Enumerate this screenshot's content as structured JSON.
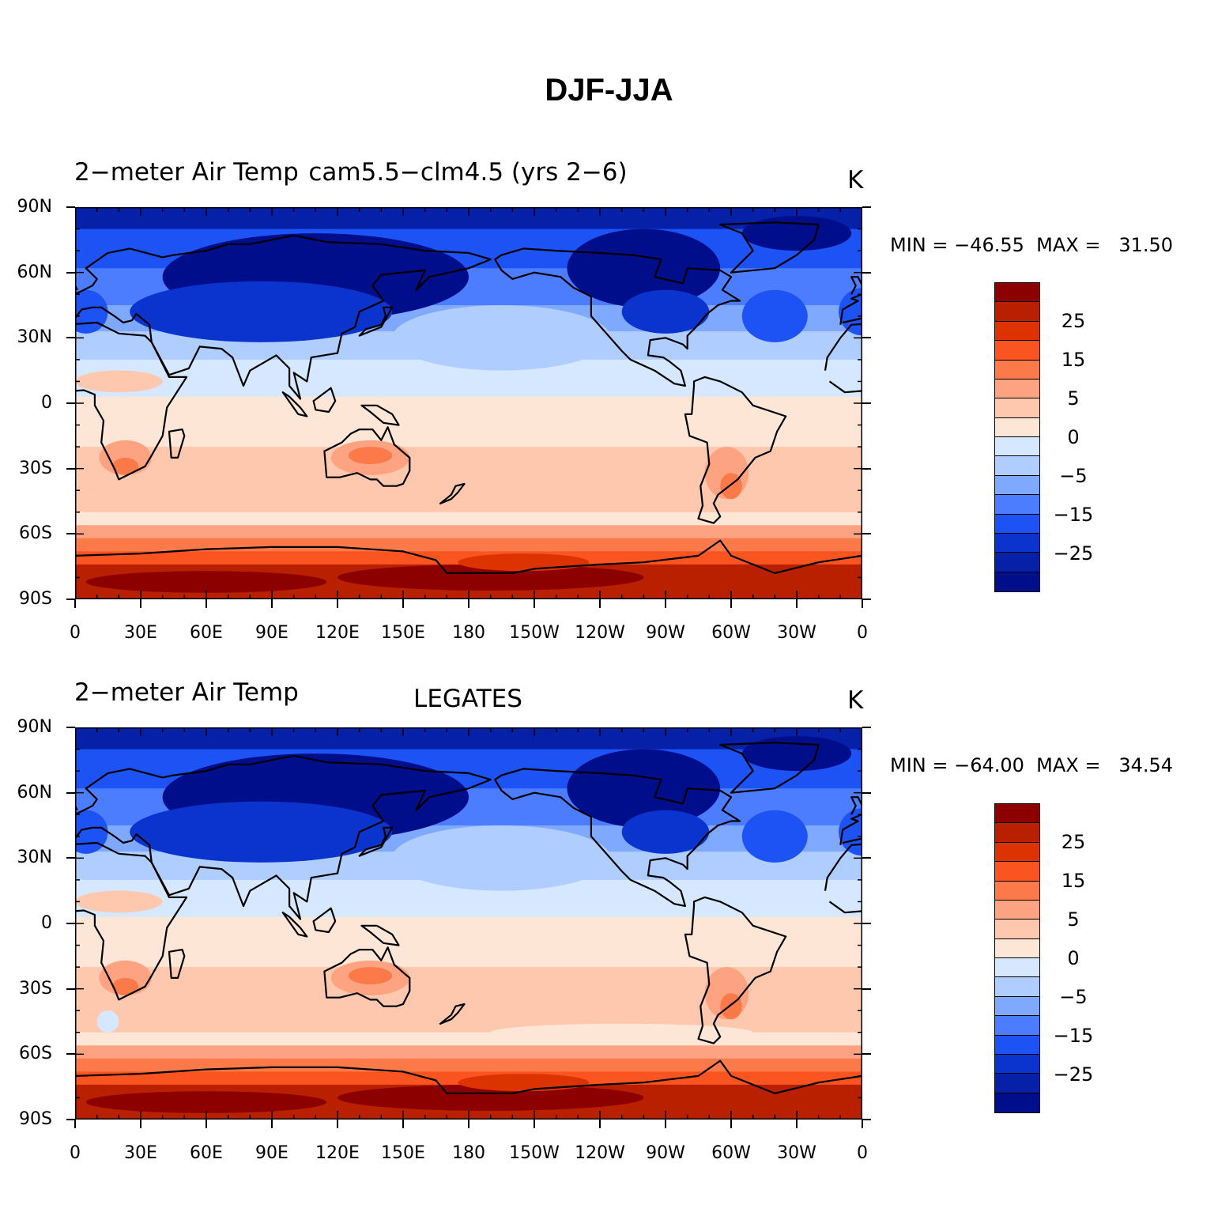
{
  "main_title": "DJF-JJA",
  "x_ticks": [
    "0",
    "30E",
    "60E",
    "90E",
    "120E",
    "150E",
    "180",
    "150W",
    "120W",
    "90W",
    "60W",
    "30W",
    "0"
  ],
  "y_ticks": [
    "90N",
    "60N",
    "30N",
    "0",
    "30S",
    "60S",
    "90S"
  ],
  "colorbar": {
    "colors": [
      "#8c0000",
      "#b82000",
      "#dd3300",
      "#fa5420",
      "#fc7a4a",
      "#fda382",
      "#fdc8ae",
      "#fee6d6",
      "#d5e8ff",
      "#b0cdff",
      "#7fa8ff",
      "#4d7dff",
      "#1d52f5",
      "#0a34cd",
      "#0620a8",
      "#000e8c"
    ],
    "labels": [
      "25",
      "15",
      "5",
      "0",
      "−5",
      "−15",
      "−25"
    ]
  },
  "panels": [
    {
      "left_title": "2−meter Air Temp",
      "center_title": "cam5.5−clm4.5 (yrs 2−6)",
      "units": "K",
      "minmax": "MIN = −46.55  MAX =   31.50"
    },
    {
      "left_title": "2−meter Air Temp",
      "center_title": "LEGATES",
      "units": "K",
      "minmax": "MIN = −64.00  MAX =   34.54"
    }
  ]
}
